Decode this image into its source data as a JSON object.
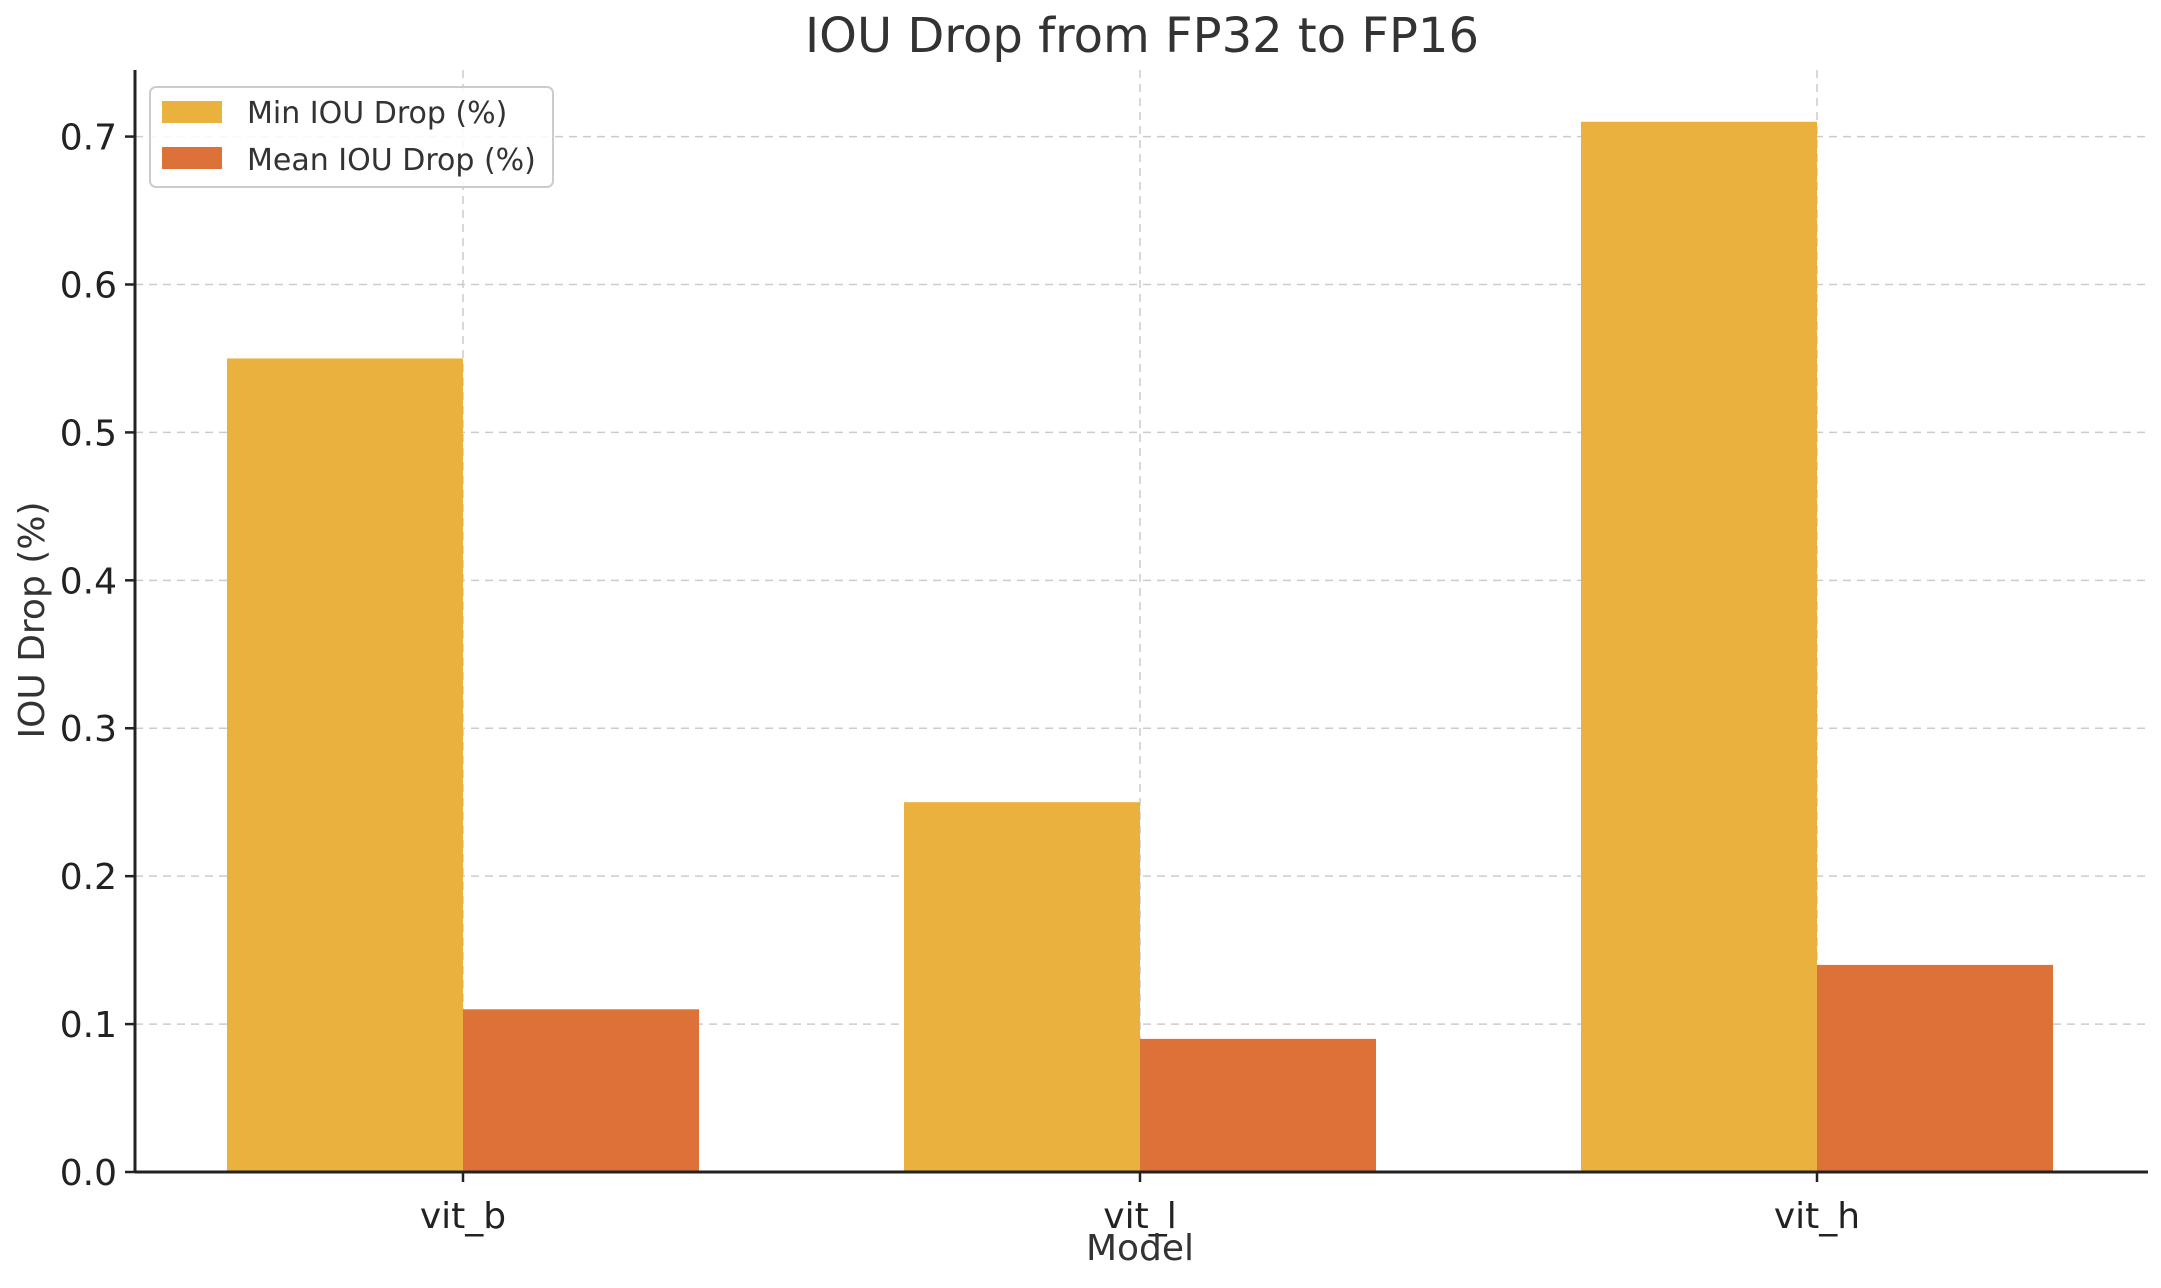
{
  "chart_data": {
    "type": "bar",
    "title": "IOU Drop from FP32 to FP16",
    "xlabel": "Model",
    "ylabel": "IOU Drop (%)",
    "categories": [
      "vit_b",
      "vit_l",
      "vit_h"
    ],
    "series": [
      {
        "name": "Min IOU Drop (%)",
        "values": [
          0.55,
          0.25,
          0.71
        ],
        "color": "#EAB13F"
      },
      {
        "name": "Mean IOU Drop (%)",
        "values": [
          0.11,
          0.09,
          0.14
        ],
        "color": "#DC7238"
      }
    ],
    "ylim": [
      0,
      0.745
    ],
    "yticks": [
      0.0,
      0.1,
      0.2,
      0.3,
      0.4,
      0.5,
      0.6,
      0.7
    ],
    "ytick_labels": [
      "0.0",
      "0.1",
      "0.2",
      "0.3",
      "0.4",
      "0.5",
      "0.6",
      "0.7"
    ],
    "grid": true,
    "legend_position": "top-left"
  }
}
